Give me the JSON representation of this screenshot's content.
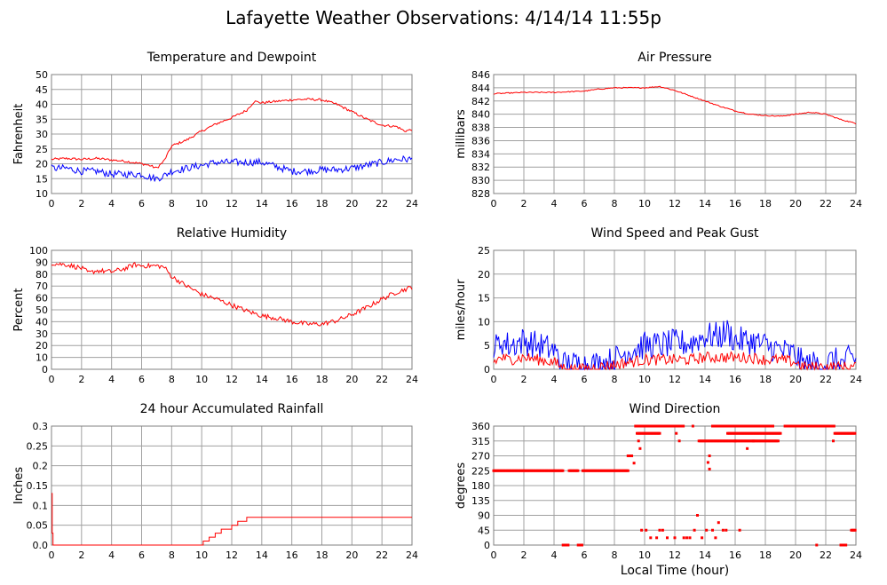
{
  "page": {
    "title": "Lafayette Weather Observations: 4/14/14 11:55p",
    "xlabel": "Local Time (hour)"
  },
  "colors": {
    "red": "#ff0000",
    "blue": "#0000ff",
    "grid": "#a0a0a0"
  },
  "chart_data": [
    {
      "id": "temp",
      "type": "line",
      "title": "Temperature and Dewpoint",
      "xlabel": "",
      "ylabel": "Fahrenheit",
      "xlim": [
        0,
        24
      ],
      "ylim": [
        10,
        50
      ],
      "xticks": [
        0,
        2,
        4,
        6,
        8,
        10,
        12,
        14,
        16,
        18,
        20,
        22,
        24
      ],
      "yticks": [
        10,
        15,
        20,
        25,
        30,
        35,
        40,
        45,
        50
      ],
      "grid": true,
      "series": [
        {
          "color": "#ff0000",
          "jitter": 0.4,
          "x": [
            0,
            1,
            2,
            3,
            4,
            5,
            6,
            6.5,
            7,
            7.5,
            8,
            9,
            10,
            11,
            12,
            13,
            13.5,
            14,
            15,
            16,
            17,
            18,
            19,
            20,
            21,
            22,
            23,
            23.5,
            24
          ],
          "y": [
            21.5,
            21.8,
            21.5,
            21.8,
            21.3,
            20.8,
            20,
            19.5,
            18.5,
            21,
            26,
            28,
            31,
            33.5,
            35.5,
            38,
            41,
            40.5,
            41,
            41.5,
            41.7,
            41.5,
            40,
            37.5,
            35,
            33,
            32.5,
            31,
            31.5
          ]
        },
        {
          "color": "#0000ff",
          "jitter": 1.2,
          "x": [
            0,
            1,
            2,
            3,
            4,
            5,
            6,
            6.5,
            7,
            7.5,
            8,
            9,
            10,
            11,
            12,
            13,
            14,
            15,
            16,
            17,
            18,
            19,
            20,
            21,
            22,
            23,
            24
          ],
          "y": [
            18.5,
            18.5,
            17.5,
            17.5,
            16.5,
            16.5,
            16.5,
            15.5,
            15,
            16,
            17.5,
            18.5,
            19.5,
            20.5,
            20.5,
            20.5,
            20.5,
            19,
            17.5,
            17.5,
            18,
            18,
            18.5,
            19.5,
            20.5,
            21.5,
            21.5
          ]
        }
      ]
    },
    {
      "id": "pressure",
      "type": "line",
      "title": "Air Pressure",
      "xlabel": "",
      "ylabel": "millibars",
      "xlim": [
        0,
        24
      ],
      "ylim": [
        828,
        846
      ],
      "xticks": [
        0,
        2,
        4,
        6,
        8,
        10,
        12,
        14,
        16,
        18,
        20,
        22,
        24
      ],
      "yticks": [
        828,
        830,
        832,
        834,
        836,
        838,
        840,
        842,
        844,
        846
      ],
      "grid": true,
      "series": [
        {
          "color": "#ff0000",
          "jitter": 0.08,
          "x": [
            0,
            2,
            4,
            6,
            7,
            8,
            9,
            10,
            11,
            12,
            13,
            14,
            15,
            16,
            17,
            18,
            19,
            20,
            21,
            22,
            23,
            24
          ],
          "y": [
            843.1,
            843.3,
            843.3,
            843.5,
            843.8,
            844.0,
            844.0,
            844.0,
            844.2,
            843.6,
            842.8,
            842.0,
            841.2,
            840.5,
            840.0,
            839.8,
            839.7,
            840.0,
            840.3,
            840.0,
            839.2,
            838.6
          ]
        }
      ]
    },
    {
      "id": "humidity",
      "type": "line",
      "title": "Relative Humidity",
      "xlabel": "",
      "ylabel": "Percent",
      "xlim": [
        0,
        24
      ],
      "ylim": [
        0,
        100
      ],
      "xticks": [
        0,
        2,
        4,
        6,
        8,
        10,
        12,
        14,
        16,
        18,
        20,
        22,
        24
      ],
      "yticks": [
        0,
        10,
        20,
        30,
        40,
        50,
        60,
        70,
        80,
        90,
        100
      ],
      "grid": true,
      "series": [
        {
          "color": "#ff0000",
          "jitter": 2,
          "x": [
            0,
            1,
            2,
            2.5,
            3,
            4,
            5,
            5.5,
            6,
            7,
            7.5,
            8,
            9,
            10,
            11,
            12,
            13,
            14,
            15,
            16,
            17,
            18,
            19,
            20,
            21,
            22,
            23,
            24
          ],
          "y": [
            89,
            88,
            85,
            81,
            83,
            82,
            85,
            88,
            87,
            87,
            86,
            78,
            70,
            63,
            59,
            54,
            49,
            45,
            43,
            40,
            38,
            38,
            41,
            46,
            52,
            59,
            65,
            69
          ]
        }
      ]
    },
    {
      "id": "wind",
      "type": "line",
      "title": "Wind Speed and Peak Gust",
      "xlabel": "",
      "ylabel": "miles/hour",
      "xlim": [
        0,
        24
      ],
      "ylim": [
        0,
        25
      ],
      "xticks": [
        0,
        2,
        4,
        6,
        8,
        10,
        12,
        14,
        16,
        18,
        20,
        22,
        24
      ],
      "yticks": [
        0,
        5,
        10,
        15,
        20,
        25
      ],
      "grid": true,
      "series": [
        {
          "color": "#0000ff",
          "jitter": 3,
          "clipmin": 0,
          "x": [
            0,
            0.5,
            1,
            2,
            3,
            4,
            4.5,
            5,
            6,
            7,
            8,
            9,
            10,
            11,
            12,
            13,
            14,
            15,
            15.5,
            16,
            17,
            18,
            19,
            20,
            20.5,
            21,
            22,
            22.5,
            23,
            23.5,
            24
          ],
          "y": [
            4,
            6,
            5,
            6,
            5,
            4,
            1,
            1,
            1,
            1,
            2,
            4,
            5,
            5,
            5.5,
            5.5,
            7,
            7,
            8,
            6,
            6,
            5,
            4,
            3,
            1,
            1,
            1,
            2,
            1,
            2,
            2
          ]
        },
        {
          "color": "#ff0000",
          "jitter": 1.2,
          "clipmin": 0,
          "x": [
            0,
            0.5,
            1,
            2,
            3,
            4,
            4.5,
            5,
            6,
            7,
            8,
            9,
            10,
            11,
            12,
            13,
            14,
            15,
            16,
            17,
            18,
            19,
            20,
            20.5,
            21,
            22,
            23,
            24
          ],
          "y": [
            1.5,
            2.5,
            2,
            2.5,
            2,
            1.5,
            0.5,
            0,
            0,
            0.5,
            1,
            1.5,
            2,
            2,
            2,
            2,
            2.5,
            2.5,
            2.5,
            2.5,
            2,
            2,
            1.5,
            0.5,
            0.5,
            0.5,
            0.5,
            0.5
          ]
        }
      ]
    },
    {
      "id": "rain",
      "type": "line",
      "title": "24 hour Accumulated Rainfall",
      "xlabel": "",
      "ylabel": "Inches",
      "xlim": [
        0,
        24
      ],
      "ylim": [
        0,
        0.3
      ],
      "xticks": [
        0,
        2,
        4,
        6,
        8,
        10,
        12,
        14,
        16,
        18,
        20,
        22,
        24
      ],
      "yticks": [
        0,
        0.05,
        0.1,
        0.15,
        0.2,
        0.25,
        0.3
      ],
      "ytickLabels": [
        "0.0",
        "0.05",
        "0.1",
        "0.15",
        "0.2",
        "0.25",
        "0.3"
      ],
      "grid": true,
      "series": [
        {
          "color": "#ff0000",
          "jitter": 0,
          "step": true,
          "x": [
            0,
            0.05,
            0.1,
            9.6,
            10.1,
            10.5,
            10.9,
            11.3,
            11.6,
            12,
            12.4,
            13.0,
            14,
            24
          ],
          "y": [
            0.13,
            0.03,
            0,
            0,
            0.01,
            0.02,
            0.03,
            0.04,
            0.04,
            0.05,
            0.06,
            0.07,
            0.07,
            0.07
          ]
        }
      ]
    },
    {
      "id": "direction",
      "type": "scatter",
      "title": "Wind Direction",
      "xlabel": "Local Time (hour)",
      "ylabel": "degrees",
      "xlim": [
        0,
        24
      ],
      "ylim": [
        0,
        360
      ],
      "xticks": [
        0,
        2,
        4,
        6,
        8,
        10,
        12,
        14,
        16,
        18,
        20,
        22,
        24
      ],
      "yticks": [
        0,
        45,
        90,
        135,
        180,
        225,
        270,
        315,
        360
      ],
      "grid": true,
      "series": [
        {
          "color": "#ff0000",
          "runs": [
            {
              "y": 225,
              "x0": 0,
              "x1": 4.6
            },
            {
              "y": 225,
              "x0": 5.0,
              "x1": 5.6
            },
            {
              "y": 225,
              "x0": 5.9,
              "x1": 8.9
            },
            {
              "y": 270,
              "x0": 8.9,
              "x1": 9.2
            },
            {
              "y": 360,
              "x0": 9.4,
              "x1": 12.6
            },
            {
              "y": 338,
              "x0": 9.5,
              "x1": 11.0
            },
            {
              "y": 315,
              "x0": 13.6,
              "x1": 18.9
            },
            {
              "y": 360,
              "x0": 14.5,
              "x1": 18.5
            },
            {
              "y": 338,
              "x0": 15.5,
              "x1": 19.0
            },
            {
              "y": 360,
              "x0": 19.3,
              "x1": 22.6
            },
            {
              "y": 338,
              "x0": 22.6,
              "x1": 24.0
            },
            {
              "y": 0,
              "x0": 4.6,
              "x1": 5.0
            },
            {
              "y": 0,
              "x0": 5.6,
              "x1": 5.9
            },
            {
              "y": 0,
              "x0": 23.0,
              "x1": 23.4
            },
            {
              "y": 45,
              "x0": 23.7,
              "x1": 24.0
            }
          ],
          "points": [
            [
              9.6,
              315
            ],
            [
              9.7,
              292
            ],
            [
              9.3,
              248
            ],
            [
              9.8,
              45
            ],
            [
              10.1,
              45
            ],
            [
              10.4,
              22
            ],
            [
              11.0,
              45
            ],
            [
              11.2,
              45
            ],
            [
              10.8,
              22
            ],
            [
              11.5,
              22
            ],
            [
              12.0,
              22
            ],
            [
              12.1,
              338
            ],
            [
              12.3,
              315
            ],
            [
              12.6,
              22
            ],
            [
              12.8,
              22
            ],
            [
              13.0,
              22
            ],
            [
              13.3,
              45
            ],
            [
              13.5,
              90
            ],
            [
              13.8,
              22
            ],
            [
              14.1,
              45
            ],
            [
              14.3,
              270
            ],
            [
              14.5,
              45
            ],
            [
              14.7,
              22
            ],
            [
              14.9,
              68
            ],
            [
              15.2,
              45
            ],
            [
              15.4,
              45
            ],
            [
              16.0,
              315
            ],
            [
              16.3,
              45
            ],
            [
              16.8,
              292
            ],
            [
              17.2,
              315
            ],
            [
              13.2,
              360
            ],
            [
              20.6,
              360
            ],
            [
              21.4,
              0
            ],
            [
              22.5,
              315
            ],
            [
              14.2,
              250
            ],
            [
              14.3,
              230
            ]
          ]
        }
      ]
    }
  ]
}
